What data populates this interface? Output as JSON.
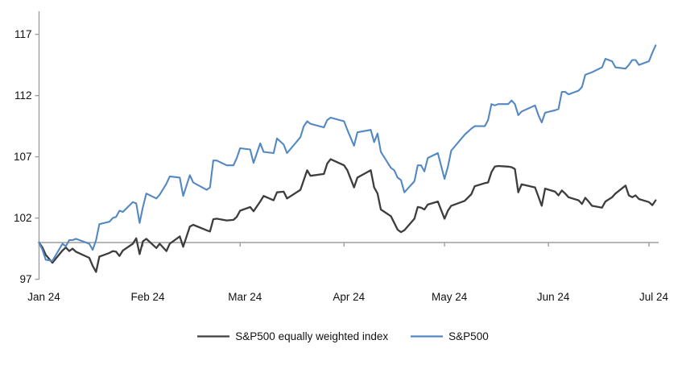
{
  "chart_data": {
    "type": "line",
    "title": "",
    "grid": false,
    "legend_position": "bottom",
    "x_axis": {
      "tick_labels": [
        "Jan 24",
        "Feb 24",
        "Mar 24",
        "Apr 24",
        "May 24",
        "Jun 24",
        "Jul 24"
      ],
      "tick_dates": [
        "2024-01-01",
        "2024-02-01",
        "2024-03-01",
        "2024-04-01",
        "2024-05-01",
        "2024-06-01",
        "2024-07-01"
      ],
      "baseline_value": 100
    },
    "y_axis": {
      "ticks": [
        97,
        102,
        107,
        112,
        117
      ],
      "min": 97,
      "max": 118.8
    },
    "dates": [
      "2024-01-01",
      "2024-01-02",
      "2024-01-03",
      "2024-01-05",
      "2024-01-08",
      "2024-01-09",
      "2024-01-10",
      "2024-01-11",
      "2024-01-12",
      "2024-01-16",
      "2024-01-17",
      "2024-01-18",
      "2024-01-19",
      "2024-01-22",
      "2024-01-23",
      "2024-01-24",
      "2024-01-25",
      "2024-01-26",
      "2024-01-29",
      "2024-01-30",
      "2024-01-31",
      "2024-02-01",
      "2024-02-02",
      "2024-02-05",
      "2024-02-06",
      "2024-02-08",
      "2024-02-09",
      "2024-02-12",
      "2024-02-13",
      "2024-02-15",
      "2024-02-16",
      "2024-02-20",
      "2024-02-21",
      "2024-02-22",
      "2024-02-23",
      "2024-02-26",
      "2024-02-28",
      "2024-02-29",
      "2024-03-01",
      "2024-03-04",
      "2024-03-05",
      "2024-03-07",
      "2024-03-08",
      "2024-03-11",
      "2024-03-12",
      "2024-03-14",
      "2024-03-15",
      "2024-03-19",
      "2024-03-20",
      "2024-03-21",
      "2024-03-22",
      "2024-03-26",
      "2024-03-27",
      "2024-03-28",
      "2024-04-01",
      "2024-04-02",
      "2024-04-04",
      "2024-04-05",
      "2024-04-09",
      "2024-04-10",
      "2024-04-11",
      "2024-04-12",
      "2024-04-15",
      "2024-04-16",
      "2024-04-17",
      "2024-04-18",
      "2024-04-19",
      "2024-04-22",
      "2024-04-23",
      "2024-04-24",
      "2024-04-25",
      "2024-04-26",
      "2024-04-29",
      "2024-05-01",
      "2024-05-02",
      "2024-05-03",
      "2024-05-07",
      "2024-05-09",
      "2024-05-10",
      "2024-05-13",
      "2024-05-14",
      "2024-05-15",
      "2024-05-16",
      "2024-05-17",
      "2024-05-20",
      "2024-05-21",
      "2024-05-22",
      "2024-05-23",
      "2024-05-24",
      "2024-05-28",
      "2024-05-29",
      "2024-05-30",
      "2024-05-31",
      "2024-06-03",
      "2024-06-04",
      "2024-06-05",
      "2024-06-06",
      "2024-06-07",
      "2024-06-10",
      "2024-06-11",
      "2024-06-12",
      "2024-06-13",
      "2024-06-14",
      "2024-06-17",
      "2024-06-18",
      "2024-06-20",
      "2024-06-21",
      "2024-06-24",
      "2024-06-25",
      "2024-06-26",
      "2024-06-27",
      "2024-06-28",
      "2024-07-01",
      "2024-07-02",
      "2024-07-03"
    ],
    "series": [
      {
        "name": "S&P500 equally weighted index",
        "color": "#3d3d3d",
        "values": [
          100.0,
          99.6,
          99.0,
          98.35,
          99.35,
          99.6,
          99.3,
          99.5,
          99.25,
          98.75,
          98.1,
          97.6,
          98.85,
          99.15,
          99.3,
          99.25,
          98.9,
          99.35,
          99.9,
          100.35,
          99.05,
          100.1,
          100.3,
          99.55,
          99.9,
          99.3,
          99.9,
          100.5,
          99.65,
          101.3,
          101.45,
          101.0,
          100.9,
          101.9,
          101.95,
          101.8,
          101.85,
          102.1,
          102.6,
          102.9,
          102.55,
          103.35,
          103.8,
          103.45,
          104.1,
          104.15,
          103.6,
          104.3,
          105.1,
          105.9,
          105.45,
          105.6,
          106.45,
          106.8,
          106.3,
          105.9,
          104.5,
          105.3,
          105.9,
          104.5,
          104.0,
          102.7,
          102.15,
          101.6,
          101.05,
          100.85,
          101.0,
          101.95,
          102.9,
          102.85,
          102.7,
          103.1,
          103.35,
          101.95,
          102.6,
          103.0,
          103.4,
          103.95,
          104.6,
          104.85,
          104.9,
          105.75,
          106.2,
          106.25,
          106.2,
          106.15,
          106.0,
          104.1,
          104.75,
          104.5,
          103.75,
          103.0,
          104.4,
          104.15,
          103.85,
          104.25,
          104.0,
          103.7,
          103.45,
          103.15,
          103.65,
          103.35,
          103.0,
          102.85,
          103.35,
          103.7,
          104.0,
          104.65,
          103.85,
          103.7,
          103.85,
          103.55,
          103.3,
          103.05,
          103.45
        ]
      },
      {
        "name": "S&P500",
        "color": "#5388c2",
        "values": [
          100.0,
          99.4,
          98.6,
          98.5,
          99.9,
          99.7,
          100.2,
          100.2,
          100.3,
          99.9,
          99.4,
          100.2,
          101.5,
          101.7,
          102.0,
          102.1,
          102.6,
          102.5,
          103.3,
          103.2,
          101.6,
          102.9,
          104.0,
          103.6,
          103.9,
          104.8,
          105.4,
          105.3,
          103.8,
          105.5,
          104.9,
          104.3,
          104.5,
          106.7,
          106.7,
          106.3,
          106.3,
          106.9,
          107.7,
          107.6,
          106.5,
          108.1,
          107.4,
          107.3,
          108.5,
          108.0,
          107.3,
          108.6,
          109.5,
          109.9,
          109.7,
          109.4,
          110.0,
          110.2,
          109.9,
          109.2,
          107.9,
          109.0,
          109.2,
          108.2,
          108.9,
          107.4,
          106.1,
          105.9,
          105.3,
          105.1,
          104.1,
          105.0,
          106.3,
          106.3,
          105.8,
          106.9,
          107.3,
          105.2,
          106.2,
          107.5,
          108.8,
          109.3,
          109.5,
          109.5,
          110.0,
          111.3,
          111.2,
          111.3,
          111.3,
          111.6,
          111.3,
          110.4,
          110.7,
          111.2,
          110.4,
          109.8,
          110.6,
          110.8,
          110.9,
          112.3,
          112.3,
          112.1,
          112.4,
          112.7,
          113.7,
          113.8,
          113.9,
          114.3,
          115.0,
          114.8,
          114.3,
          114.2,
          114.5,
          114.9,
          114.9,
          114.5,
          114.8,
          115.5,
          116.1
        ]
      }
    ]
  },
  "colors": {
    "axis": "#9e9e9e",
    "text": "#111111",
    "background": "#ffffff"
  }
}
